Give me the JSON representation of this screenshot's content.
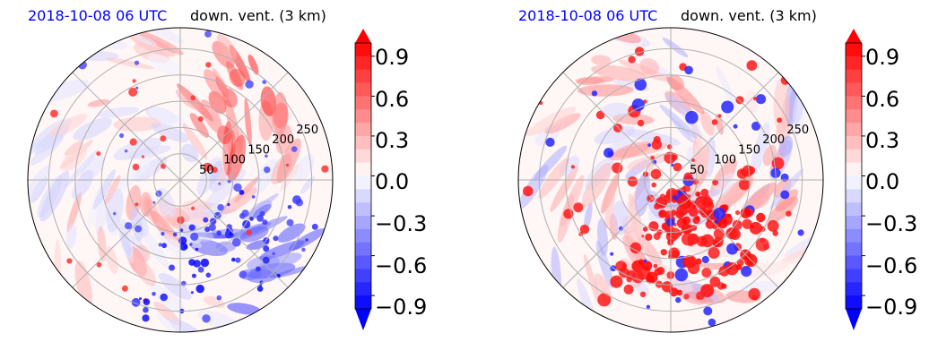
{
  "chart_data": [
    {
      "type": "heatmap",
      "projection": "polar",
      "time_label": "2018-10-08 06 UTC",
      "title": "down. vent. (3 km)",
      "radial_ticks": [
        "50",
        "100",
        "150",
        "200",
        "250"
      ],
      "radial_range": [
        0,
        290
      ],
      "angular_gridlines_deg": [
        0,
        45,
        90,
        135,
        180,
        225,
        270,
        315
      ],
      "grid": true,
      "colormap": "bwr",
      "colorbar": {
        "range": [
          -1.0,
          1.0
        ],
        "ticks": [
          "0.9",
          "0.6",
          "0.3",
          "0.0",
          "−0.3",
          "−0.6",
          "−0.9"
        ],
        "tick_values": [
          0.9,
          0.6,
          0.3,
          0.0,
          -0.3,
          -0.6,
          -0.9
        ],
        "extend": "both",
        "levels": 20,
        "placement": "right"
      }
    },
    {
      "type": "heatmap",
      "projection": "polar",
      "time_label": "2018-10-08 06 UTC",
      "title": "down. vent. (3 km)",
      "radial_ticks": [
        "50",
        "100",
        "150",
        "200",
        "250"
      ],
      "radial_range": [
        0,
        290
      ],
      "angular_gridlines_deg": [
        0,
        45,
        90,
        135,
        180,
        225,
        270,
        315
      ],
      "grid": true,
      "colormap": "bwr",
      "colorbar": {
        "range": [
          -1.0,
          1.0
        ],
        "ticks": [
          "0.9",
          "0.6",
          "0.3",
          "0.0",
          "−0.3",
          "−0.6",
          "−0.9"
        ],
        "tick_values": [
          0.9,
          0.6,
          0.3,
          0.0,
          -0.3,
          -0.6,
          -0.9
        ],
        "extend": "both",
        "levels": 20,
        "placement": "right"
      }
    }
  ],
  "colors": {
    "time_label": "#0000ff",
    "positive": "#ff0000",
    "negative": "#0000ff",
    "grid": "#b0b0b0"
  }
}
